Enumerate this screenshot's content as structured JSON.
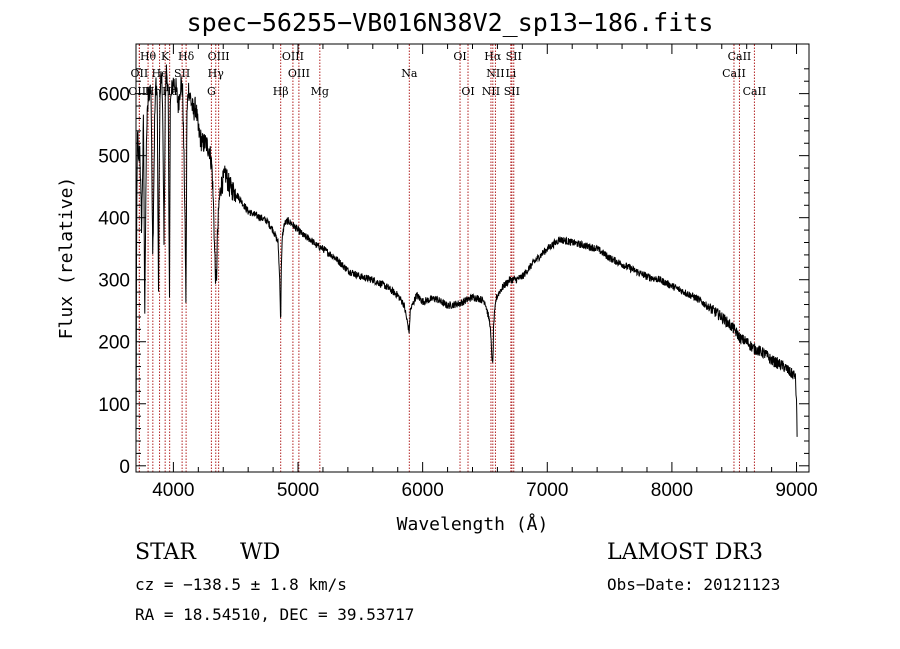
{
  "chart_data": {
    "type": "line",
    "title": "spec−56255−VB016N38V2_sp13−186.fits",
    "xlabel": "Wavelength (Å)",
    "ylabel": "Flux (relative)",
    "xlim": [
      3700,
      9100
    ],
    "ylim": [
      -10,
      680
    ],
    "xticks": [
      4000,
      5000,
      6000,
      7000,
      8000,
      9000
    ],
    "yticks": [
      0,
      100,
      200,
      300,
      400,
      500,
      600
    ],
    "spectrum_anchor_points": {
      "x": [
        3700,
        3705,
        3712,
        3720,
        3730,
        3745,
        3760,
        3770,
        3785,
        3800,
        3820,
        3835,
        3850,
        3860,
        3870,
        3880,
        3890,
        3900,
        3912,
        3925,
        3935,
        3945,
        3958,
        3968,
        3975,
        3990,
        4000,
        4020,
        4040,
        4060,
        4075,
        4090,
        4101,
        4108,
        4120,
        4140,
        4160,
        4180,
        4200,
        4230,
        4260,
        4290,
        4310,
        4325,
        4330,
        4340,
        4345,
        4352,
        4365,
        4380,
        4400,
        4420,
        4450,
        4500,
        4550,
        4600,
        4650,
        4700,
        4750,
        4800,
        4840,
        4855,
        4861,
        4866,
        4875,
        4890,
        4920,
        4950,
        5000,
        5050,
        5100,
        5150,
        5200,
        5300,
        5400,
        5500,
        5600,
        5700,
        5800,
        5850,
        5893,
        5900,
        5950,
        6000,
        6100,
        6200,
        6300,
        6400,
        6450,
        6500,
        6540,
        6555,
        6563,
        6570,
        6590,
        6620,
        6650,
        6700,
        6750,
        6800,
        6900,
        7000,
        7100,
        7200,
        7300,
        7400,
        7500,
        7600,
        7700,
        7800,
        7900,
        8000,
        8100,
        8200,
        8300,
        8400,
        8450,
        8500,
        8550,
        8600,
        8650,
        8700,
        8750,
        8800,
        8850,
        8900,
        8950,
        8990,
        9000,
        9005
      ],
      "y": [
        40,
        360,
        560,
        480,
        520,
        380,
        560,
        250,
        540,
        600,
        610,
        340,
        560,
        620,
        600,
        280,
        570,
        630,
        600,
        360,
        590,
        640,
        600,
        260,
        580,
        610,
        620,
        610,
        580,
        620,
        600,
        440,
        260,
        560,
        610,
        590,
        570,
        580,
        540,
        520,
        520,
        510,
        480,
        400,
        350,
        300,
        290,
        360,
        420,
        450,
        460,
        470,
        450,
        440,
        425,
        410,
        405,
        400,
        395,
        380,
        360,
        290,
        225,
        320,
        370,
        390,
        395,
        390,
        380,
        370,
        365,
        355,
        350,
        335,
        315,
        305,
        300,
        290,
        275,
        260,
        215,
        250,
        275,
        265,
        270,
        258,
        262,
        272,
        270,
        265,
        230,
        180,
        160,
        230,
        270,
        282,
        290,
        300,
        300,
        305,
        330,
        350,
        365,
        360,
        355,
        350,
        335,
        325,
        315,
        305,
        300,
        290,
        280,
        270,
        255,
        240,
        230,
        220,
        205,
        200,
        190,
        185,
        180,
        170,
        165,
        160,
        150,
        145,
        100,
        40
      ]
    },
    "lines": [
      {
        "label": "Hθ",
        "wavelength": 3797,
        "row": 0
      },
      {
        "label": "K",
        "wavelength": 3934,
        "row": 0
      },
      {
        "label": "Hδ",
        "wavelength": 4102,
        "row": 0
      },
      {
        "label": "OIII",
        "wavelength": 4363,
        "row": 0
      },
      {
        "label": "OIII",
        "wavelength": 4959,
        "row": 0
      },
      {
        "label": "OI",
        "wavelength": 6300,
        "row": 0
      },
      {
        "label": "Hα",
        "wavelength": 6563,
        "row": 0
      },
      {
        "label": "SII",
        "wavelength": 6731,
        "row": 0
      },
      {
        "label": "CaII",
        "wavelength": 8542,
        "row": 0
      },
      {
        "label": "OII",
        "wavelength": 3727,
        "row": 1
      },
      {
        "label": "He",
        "wavelength": 3889,
        "row": 1
      },
      {
        "label": "SII",
        "wavelength": 4070,
        "row": 1
      },
      {
        "label": "Hγ",
        "wavelength": 4340,
        "row": 1
      },
      {
        "label": "OIII",
        "wavelength": 5007,
        "row": 1
      },
      {
        "label": "Na",
        "wavelength": 5893,
        "row": 1
      },
      {
        "label": "NII",
        "wavelength": 6584,
        "row": 1
      },
      {
        "label": "Li",
        "wavelength": 6708,
        "row": 1
      },
      {
        "label": "CaII",
        "wavelength": 8498,
        "row": 1
      },
      {
        "label": "OIII",
        "wavelength": 3727,
        "row": 2
      },
      {
        "label": "Hη",
        "wavelength": 3835,
        "row": 2
      },
      {
        "label": "Hε",
        "wavelength": 3970,
        "row": 2
      },
      {
        "label": "G",
        "wavelength": 4305,
        "row": 2
      },
      {
        "label": "Hβ",
        "wavelength": 4861,
        "row": 2
      },
      {
        "label": "Mg",
        "wavelength": 5175,
        "row": 2
      },
      {
        "label": "OI",
        "wavelength": 6364,
        "row": 2
      },
      {
        "label": "NII",
        "wavelength": 6548,
        "row": 2
      },
      {
        "label": "SII",
        "wavelength": 6716,
        "row": 2
      },
      {
        "label": "CaII",
        "wavelength": 8662,
        "row": 2
      }
    ]
  },
  "info": {
    "object_class": "STAR",
    "subclass": "WD",
    "survey": "LAMOST DR3",
    "cz": "cz = −138.5 ± 1.8 km/s",
    "obs_date": "Obs−Date: 20121123",
    "coords": "RA =  18.54510, DEC =  39.53717"
  },
  "colors": {
    "line_marker": "#b22222",
    "spectrum": "#000000",
    "axes": "#000000"
  }
}
